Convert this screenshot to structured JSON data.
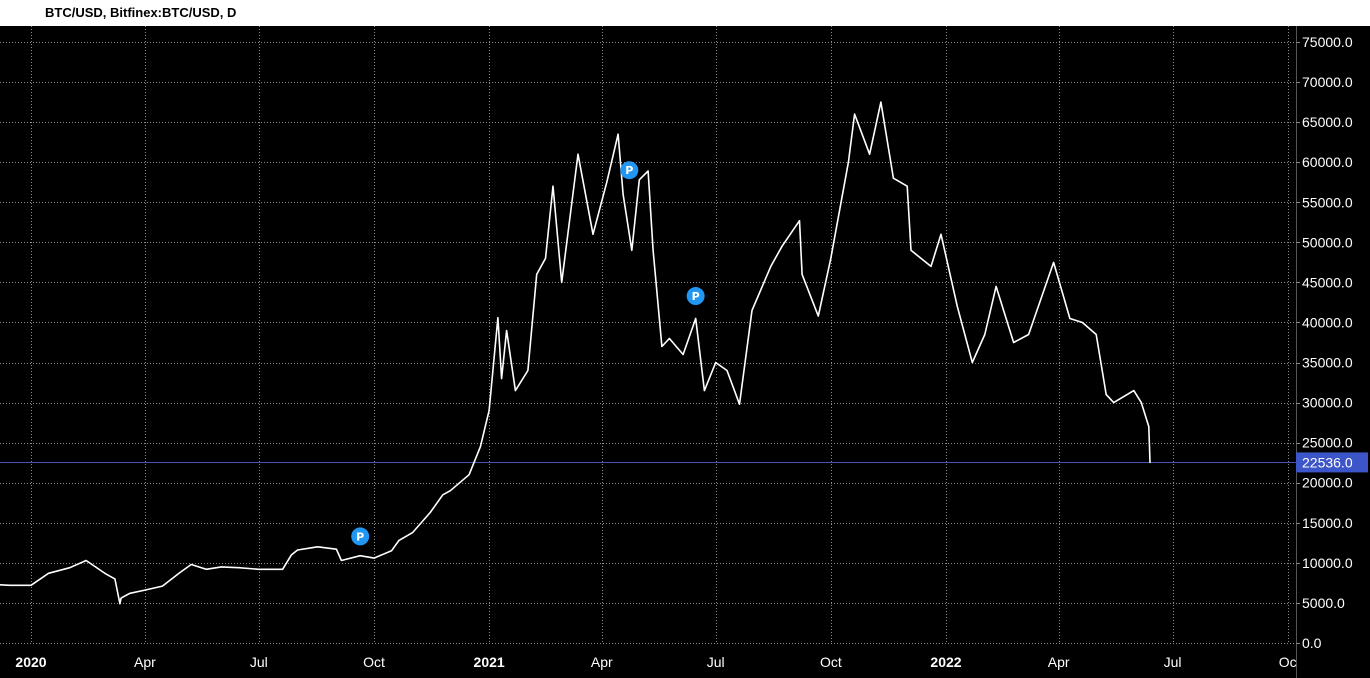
{
  "header": {
    "title": "BTC/USD, Bitfinex:BTC/USD, D"
  },
  "colors": {
    "background": "#000000",
    "line": "#ffffff",
    "grid": "#8a8a8a",
    "price_line": "#3f51b5",
    "price_label_bg": "#3c55c9",
    "marker": "#2196f3"
  },
  "chart_data": {
    "type": "line",
    "ylim": [
      0,
      76000
    ],
    "xlim": [
      "2019-12-01",
      "2022-10-15"
    ],
    "grid": true,
    "yticks": [
      {
        "value": 75000,
        "label": "75000.0"
      },
      {
        "value": 70000,
        "label": "70000.0"
      },
      {
        "value": 65000,
        "label": "65000.0"
      },
      {
        "value": 60000,
        "label": "60000.0"
      },
      {
        "value": 55000,
        "label": "55000.0"
      },
      {
        "value": 50000,
        "label": "50000.0"
      },
      {
        "value": 45000,
        "label": "45000.0"
      },
      {
        "value": 40000,
        "label": "40000.0"
      },
      {
        "value": 35000,
        "label": "35000.0"
      },
      {
        "value": 30000,
        "label": "30000.0"
      },
      {
        "value": 25000,
        "label": "25000.0"
      },
      {
        "value": 20000,
        "label": "20000.0"
      },
      {
        "value": 15000,
        "label": "15000.0"
      },
      {
        "value": 10000,
        "label": "10000.0"
      },
      {
        "value": 5000,
        "label": "5000.0"
      },
      {
        "value": 0,
        "label": "0.0"
      }
    ],
    "xticks": [
      {
        "date": "2020-01-01",
        "label": "2020",
        "bold": true
      },
      {
        "date": "2020-04-01",
        "label": "Apr",
        "bold": false
      },
      {
        "date": "2020-07-01",
        "label": "Jul",
        "bold": false
      },
      {
        "date": "2020-10-01",
        "label": "Oct",
        "bold": false
      },
      {
        "date": "2021-01-01",
        "label": "2021",
        "bold": true
      },
      {
        "date": "2021-04-01",
        "label": "Apr",
        "bold": false
      },
      {
        "date": "2021-07-01",
        "label": "Jul",
        "bold": false
      },
      {
        "date": "2021-10-01",
        "label": "Oct",
        "bold": false
      },
      {
        "date": "2022-01-01",
        "label": "2022",
        "bold": true
      },
      {
        "date": "2022-04-01",
        "label": "Apr",
        "bold": false
      },
      {
        "date": "2022-07-01",
        "label": "Jul",
        "bold": false
      },
      {
        "date": "2022-10-01",
        "label": "Oc",
        "bold": false
      }
    ],
    "current_price": {
      "value": 22536,
      "label": "22536.0"
    },
    "markers": [
      {
        "date": "2020-09-20",
        "value": 13300,
        "label": "P"
      },
      {
        "date": "2021-04-23",
        "value": 59000,
        "label": "P"
      },
      {
        "date": "2021-06-15",
        "value": 43300,
        "label": "P"
      }
    ],
    "series": [
      {
        "x": [
          "2019-12-01",
          "2019-12-15",
          "2020-01-01",
          "2020-01-15",
          "2020-02-01",
          "2020-02-14",
          "2020-03-01",
          "2020-03-08",
          "2020-03-12",
          "2020-03-13",
          "2020-03-20",
          "2020-04-01",
          "2020-04-15",
          "2020-04-29",
          "2020-05-08",
          "2020-05-20",
          "2020-06-01",
          "2020-06-15",
          "2020-07-01",
          "2020-07-20",
          "2020-07-27",
          "2020-08-01",
          "2020-08-17",
          "2020-09-01",
          "2020-09-05",
          "2020-09-20",
          "2020-10-01",
          "2020-10-15",
          "2020-10-21",
          "2020-11-01",
          "2020-11-15",
          "2020-11-25",
          "2020-12-01",
          "2020-12-16",
          "2020-12-25",
          "2021-01-01",
          "2021-01-08",
          "2021-01-11",
          "2021-01-15",
          "2021-01-22",
          "2021-02-01",
          "2021-02-08",
          "2021-02-15",
          "2021-02-21",
          "2021-02-28",
          "2021-03-13",
          "2021-03-25",
          "2021-04-05",
          "2021-04-14",
          "2021-04-18",
          "2021-04-25",
          "2021-05-01",
          "2021-05-08",
          "2021-05-12",
          "2021-05-19",
          "2021-05-25",
          "2021-06-05",
          "2021-06-15",
          "2021-06-22",
          "2021-07-01",
          "2021-07-10",
          "2021-07-20",
          "2021-07-30",
          "2021-08-14",
          "2021-08-23",
          "2021-09-06",
          "2021-09-08",
          "2021-09-21",
          "2021-10-01",
          "2021-10-15",
          "2021-10-20",
          "2021-11-01",
          "2021-11-10",
          "2021-11-20",
          "2021-12-01",
          "2021-12-04",
          "2021-12-20",
          "2021-12-28",
          "2022-01-10",
          "2022-01-22",
          "2022-02-01",
          "2022-02-10",
          "2022-02-24",
          "2022-03-08",
          "2022-03-28",
          "2022-04-10",
          "2022-04-20",
          "2022-05-01",
          "2022-05-09",
          "2022-05-15",
          "2022-05-31",
          "2022-06-06",
          "2022-06-12",
          "2022-06-13"
        ],
        "values": [
          7300,
          7200,
          7200,
          8700,
          9400,
          10300,
          8600,
          8000,
          4900,
          5600,
          6200,
          6600,
          7100,
          8800,
          9800,
          9200,
          9500,
          9400,
          9200,
          9200,
          11000,
          11600,
          12000,
          11700,
          10300,
          10900,
          10600,
          11500,
          12800,
          13800,
          16300,
          18500,
          19000,
          21000,
          24500,
          29000,
          40600,
          33000,
          39000,
          31500,
          34000,
          46000,
          48000,
          57000,
          45000,
          61000,
          51000,
          57500,
          63500,
          56000,
          49000,
          57800,
          58900,
          49000,
          37000,
          38000,
          36000,
          40500,
          31500,
          35000,
          34000,
          29800,
          41500,
          47000,
          49500,
          52700,
          46000,
          40800,
          48000,
          60000,
          66000,
          61000,
          67500,
          58000,
          57000,
          49000,
          47000,
          51000,
          42000,
          35000,
          38500,
          44500,
          37500,
          38500,
          47500,
          40500,
          40000,
          38500,
          31000,
          30000,
          31500,
          30000,
          27000,
          22536
        ]
      }
    ]
  }
}
